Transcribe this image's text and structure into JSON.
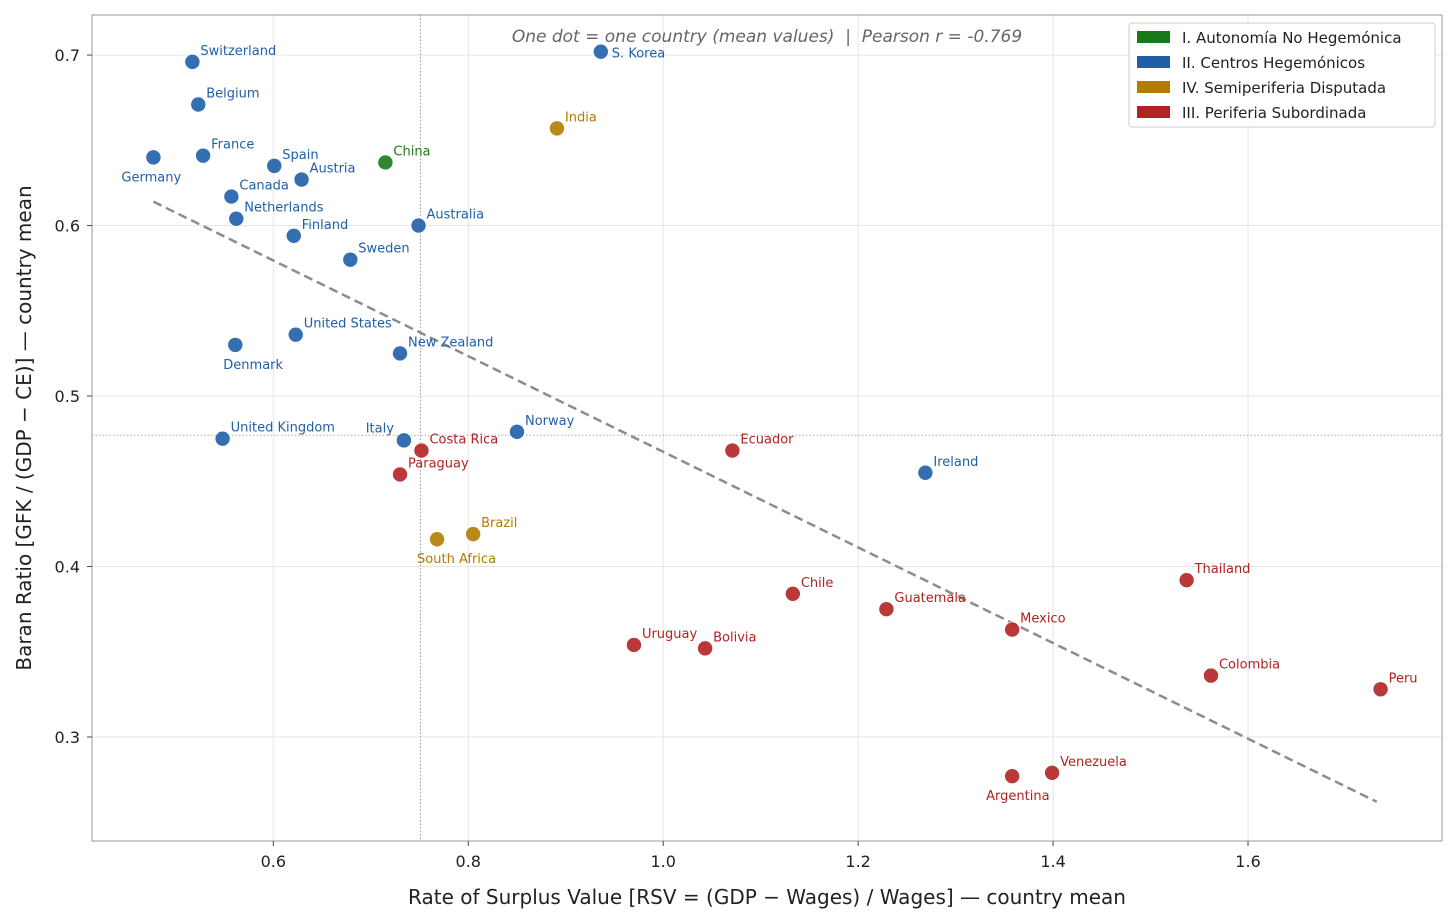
{
  "chart_data": {
    "type": "scatter",
    "annotation": "One dot = one country (mean values)  |  Pearson r = -0.769",
    "xlabel": "Rate of Surplus Value  [RSV = (GDP − Wages) / Wages]  —  country mean",
    "ylabel": "Baran Ratio  [GFK / (GDP − CE)]  —  country mean",
    "xlim": [
      0.414,
      1.799
    ],
    "ylim": [
      0.239,
      0.7235
    ],
    "xticks": [
      0.6,
      0.8,
      1.0,
      1.2,
      1.4,
      1.6
    ],
    "xtick_labels": [
      "0.6",
      "0.8",
      "1.0",
      "1.2",
      "1.4",
      "1.6"
    ],
    "yticks": [
      0.3,
      0.4,
      0.5,
      0.6,
      0.7
    ],
    "ytick_labels": [
      "0.3",
      "0.4",
      "0.5",
      "0.6",
      "0.7"
    ],
    "grid": true,
    "legend_position": "top-right",
    "mean_x": 0.751,
    "mean_y": 0.477,
    "trendline": {
      "x": [
        0.477,
        1.732
      ],
      "y": [
        0.614,
        0.262
      ]
    },
    "groups": [
      {
        "key": "I",
        "name": "I. Autonomía No Hegemónica",
        "color": "#1a7a1a"
      },
      {
        "key": "II",
        "name": "II. Centros Hegemónicos",
        "color": "#1f5fa8"
      },
      {
        "key": "IV",
        "name": "IV. Semiperiferia Disputada",
        "color": "#b07d00"
      },
      {
        "key": "III",
        "name": "III. Periferia Subordinada",
        "color": "#b22222"
      }
    ],
    "points": [
      {
        "label": "Switzerland",
        "x": 0.517,
        "y": 0.696,
        "group": "II"
      },
      {
        "label": "Belgium",
        "x": 0.523,
        "y": 0.671,
        "group": "II"
      },
      {
        "label": "Germany",
        "x": 0.477,
        "y": 0.64,
        "group": "II"
      },
      {
        "label": "France",
        "x": 0.528,
        "y": 0.641,
        "group": "II"
      },
      {
        "label": "Spain",
        "x": 0.601,
        "y": 0.635,
        "group": "II"
      },
      {
        "label": "Austria",
        "x": 0.629,
        "y": 0.627,
        "group": "II"
      },
      {
        "label": "China",
        "x": 0.715,
        "y": 0.637,
        "group": "I"
      },
      {
        "label": "Canada",
        "x": 0.557,
        "y": 0.617,
        "group": "II"
      },
      {
        "label": "Netherlands",
        "x": 0.562,
        "y": 0.604,
        "group": "II"
      },
      {
        "label": "Finland",
        "x": 0.621,
        "y": 0.594,
        "group": "II"
      },
      {
        "label": "Australia",
        "x": 0.749,
        "y": 0.6,
        "group": "II"
      },
      {
        "label": "Sweden",
        "x": 0.679,
        "y": 0.58,
        "group": "II"
      },
      {
        "label": "S. Korea",
        "x": 0.936,
        "y": 0.702,
        "group": "II"
      },
      {
        "label": "India",
        "x": 0.891,
        "y": 0.657,
        "group": "IV"
      },
      {
        "label": "United States",
        "x": 0.623,
        "y": 0.536,
        "group": "II"
      },
      {
        "label": "Denmark",
        "x": 0.561,
        "y": 0.53,
        "group": "II"
      },
      {
        "label": "New Zealand",
        "x": 0.73,
        "y": 0.525,
        "group": "II"
      },
      {
        "label": "United Kingdom",
        "x": 0.548,
        "y": 0.475,
        "group": "II"
      },
      {
        "label": "Italy",
        "x": 0.734,
        "y": 0.474,
        "group": "II"
      },
      {
        "label": "Costa Rica",
        "x": 0.752,
        "y": 0.468,
        "group": "III"
      },
      {
        "label": "Norway",
        "x": 0.85,
        "y": 0.479,
        "group": "II"
      },
      {
        "label": "Paraguay",
        "x": 0.73,
        "y": 0.454,
        "group": "III"
      },
      {
        "label": "Ecuador",
        "x": 1.071,
        "y": 0.468,
        "group": "III"
      },
      {
        "label": "Ireland",
        "x": 1.269,
        "y": 0.455,
        "group": "II"
      },
      {
        "label": "Brazil",
        "x": 0.805,
        "y": 0.419,
        "group": "IV"
      },
      {
        "label": "South Africa",
        "x": 0.768,
        "y": 0.416,
        "group": "IV"
      },
      {
        "label": "Chile",
        "x": 1.133,
        "y": 0.384,
        "group": "III"
      },
      {
        "label": "Guatemala",
        "x": 1.229,
        "y": 0.375,
        "group": "III"
      },
      {
        "label": "Thailand",
        "x": 1.537,
        "y": 0.392,
        "group": "III"
      },
      {
        "label": "Mexico",
        "x": 1.358,
        "y": 0.363,
        "group": "III"
      },
      {
        "label": "Uruguay",
        "x": 0.97,
        "y": 0.354,
        "group": "III"
      },
      {
        "label": "Bolivia",
        "x": 1.043,
        "y": 0.352,
        "group": "III"
      },
      {
        "label": "Colombia",
        "x": 1.562,
        "y": 0.336,
        "group": "III"
      },
      {
        "label": "Peru",
        "x": 1.736,
        "y": 0.328,
        "group": "III"
      },
      {
        "label": "Argentina",
        "x": 1.358,
        "y": 0.277,
        "group": "III"
      },
      {
        "label": "Venezuela",
        "x": 1.399,
        "y": 0.279,
        "group": "III"
      }
    ]
  }
}
